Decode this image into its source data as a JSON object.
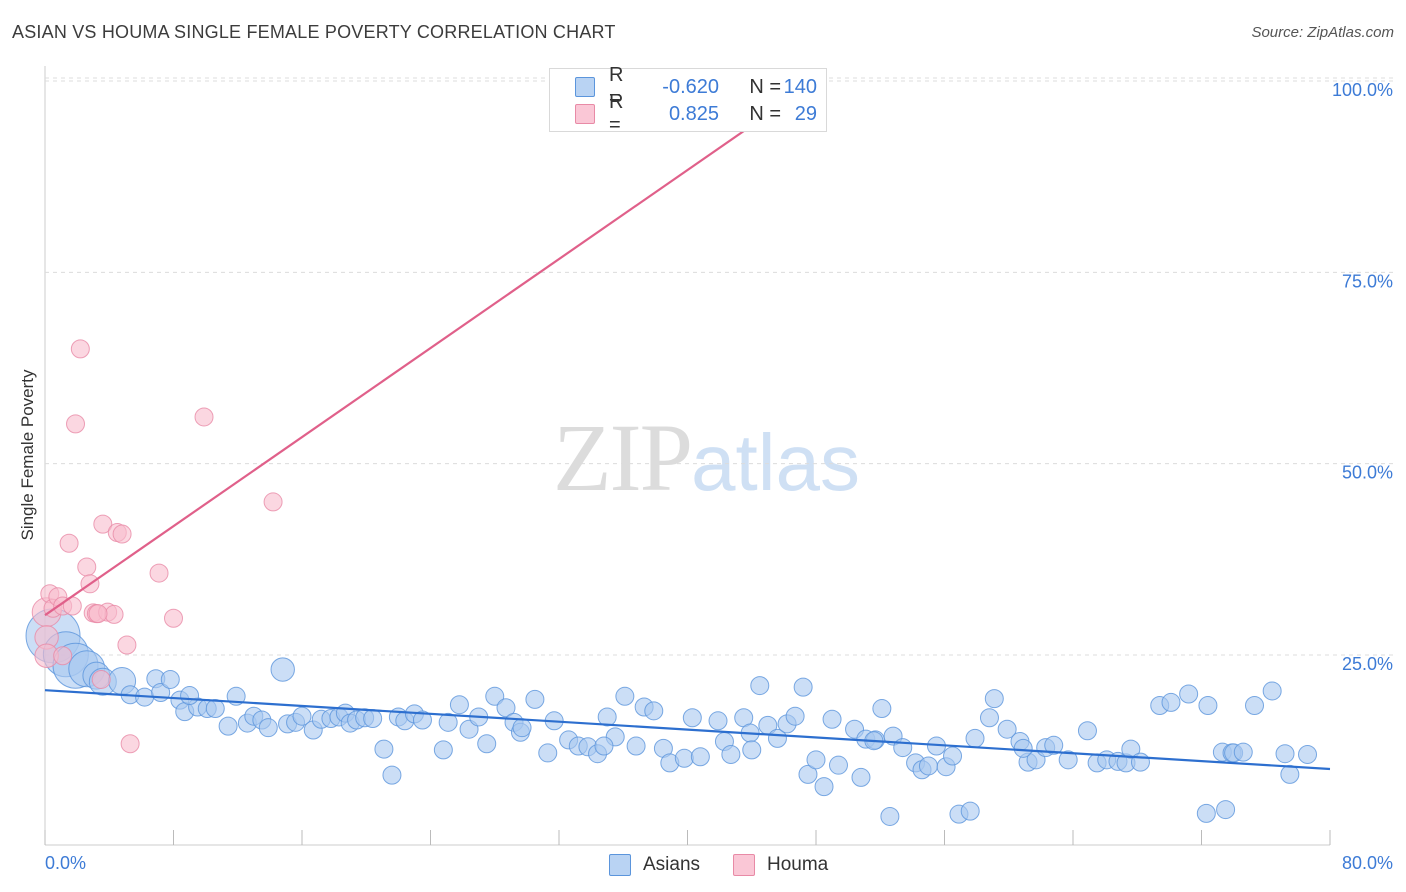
{
  "title": "ASIAN VS HOUMA SINGLE FEMALE POVERTY CORRELATION CHART",
  "source": "Source: ZipAtlas.com",
  "watermark": {
    "zip": "ZIP",
    "atlas": "atlas"
  },
  "colors": {
    "asian_fill": "#a8c8f0",
    "asian_stroke": "#5b95dc",
    "asian_line": "#2d6fcf",
    "houma_fill": "#f8bccd",
    "houma_stroke": "#e88aa6",
    "houma_line": "#e0608a",
    "axis_text": "#3d7bd6",
    "grid": "#dcdcdc"
  },
  "legend": {
    "rows": [
      {
        "r_label": "R =",
        "r_value": "-0.620",
        "n_label": "N =",
        "n_value": "140"
      },
      {
        "r_label": "R =",
        "r_value": "0.825",
        "n_label": "N =",
        "n_value": "29"
      }
    ]
  },
  "bottom_legend": {
    "asians": "Asians",
    "houma": "Houma"
  },
  "chart_data": {
    "type": "scatter",
    "title": "ASIAN VS HOUMA SINGLE FEMALE POVERTY CORRELATION CHART",
    "xlabel": "",
    "ylabel": "Single Female Poverty",
    "xlim": [
      0,
      80
    ],
    "ylim": [
      0,
      105
    ],
    "x_tick_labels": [
      "0.0%",
      "80.0%"
    ],
    "y_ticks": [
      25,
      50,
      75,
      100
    ],
    "y_tick_labels": [
      "25.0%",
      "50.0%",
      "75.0%",
      "100.0%"
    ],
    "grid": "horizontal dashed",
    "series": [
      {
        "name": "Asians",
        "trend": {
          "x": [
            0,
            80
          ],
          "y": [
            20.4,
            10.1
          ]
        },
        "points": [
          [
            0.5,
            27.5,
            3
          ],
          [
            1.3,
            25.1,
            2.5
          ],
          [
            1.9,
            23.6,
            2.5
          ],
          [
            2.6,
            23.2,
            2
          ],
          [
            3.2,
            22.3,
            1.5
          ],
          [
            3.6,
            21.5,
            1.5
          ],
          [
            4.8,
            21.6,
            1.5
          ],
          [
            5.3,
            19.8,
            1
          ],
          [
            6.2,
            19.5,
            1
          ],
          [
            6.9,
            21.9,
            1
          ],
          [
            7.2,
            20.1,
            1
          ],
          [
            7.8,
            21.8,
            1
          ],
          [
            8.4,
            19.1,
            1
          ],
          [
            8.7,
            17.6,
            1
          ],
          [
            9.5,
            18.2,
            1
          ],
          [
            10.1,
            18.0,
            1
          ],
          [
            10.6,
            18.0,
            1
          ],
          [
            11.4,
            15.7,
            1
          ],
          [
            11.9,
            19.6,
            1
          ],
          [
            12.6,
            16.1,
            1
          ],
          [
            13.0,
            17.0,
            1
          ],
          [
            13.5,
            16.5,
            1
          ],
          [
            13.9,
            15.5,
            1
          ],
          [
            14.8,
            23.1,
            1.3
          ],
          [
            15.1,
            16.0,
            1
          ],
          [
            15.6,
            16.2,
            1
          ],
          [
            16.0,
            17.0,
            1
          ],
          [
            16.7,
            15.2,
            1
          ],
          [
            17.2,
            16.6,
            1
          ],
          [
            17.8,
            16.7,
            1
          ],
          [
            18.3,
            16.9,
            1
          ],
          [
            18.7,
            17.4,
            1
          ],
          [
            19.0,
            16.1,
            1
          ],
          [
            19.4,
            16.5,
            1
          ],
          [
            19.9,
            16.8,
            1
          ],
          [
            20.4,
            16.7,
            1
          ],
          [
            21.1,
            12.7,
            1
          ],
          [
            21.6,
            9.3,
            1
          ],
          [
            22.0,
            16.9,
            1
          ],
          [
            22.4,
            16.4,
            1
          ],
          [
            23.0,
            17.3,
            1
          ],
          [
            23.5,
            16.5,
            1
          ],
          [
            24.8,
            12.6,
            1
          ],
          [
            25.1,
            16.2,
            1
          ],
          [
            25.8,
            18.5,
            1
          ],
          [
            26.4,
            15.3,
            1
          ],
          [
            27.0,
            16.9,
            1
          ],
          [
            27.5,
            13.4,
            1
          ],
          [
            28.0,
            19.6,
            1
          ],
          [
            28.7,
            18.1,
            1
          ],
          [
            29.2,
            16.2,
            1
          ],
          [
            29.6,
            14.9,
            1
          ],
          [
            30.5,
            19.2,
            1
          ],
          [
            31.3,
            12.2,
            1
          ],
          [
            31.7,
            16.4,
            1
          ],
          [
            32.6,
            13.9,
            1
          ],
          [
            33.2,
            13.1,
            1
          ],
          [
            33.8,
            13.0,
            1
          ],
          [
            34.4,
            12.1,
            1
          ],
          [
            35.0,
            16.9,
            1
          ],
          [
            35.5,
            14.3,
            1
          ],
          [
            36.1,
            19.6,
            1
          ],
          [
            36.8,
            13.1,
            1
          ],
          [
            37.3,
            18.2,
            1
          ],
          [
            37.9,
            17.7,
            1
          ],
          [
            38.5,
            12.8,
            1
          ],
          [
            38.9,
            10.9,
            1
          ],
          [
            39.8,
            11.5,
            1
          ],
          [
            40.3,
            16.8,
            1
          ],
          [
            40.8,
            11.7,
            1
          ],
          [
            41.9,
            16.4,
            1
          ],
          [
            42.3,
            13.7,
            1
          ],
          [
            42.7,
            12.0,
            1
          ],
          [
            43.5,
            16.8,
            1
          ],
          [
            43.9,
            14.8,
            1
          ],
          [
            44.5,
            21.0,
            1
          ],
          [
            45.0,
            15.8,
            1
          ],
          [
            45.6,
            14.1,
            1
          ],
          [
            46.2,
            16.0,
            1
          ],
          [
            46.7,
            17.0,
            1
          ],
          [
            47.2,
            20.8,
            1
          ],
          [
            47.5,
            9.4,
            1
          ],
          [
            48.0,
            11.3,
            1
          ],
          [
            48.5,
            7.8,
            1
          ],
          [
            49.0,
            16.6,
            1
          ],
          [
            49.4,
            10.6,
            1
          ],
          [
            50.4,
            15.3,
            1
          ],
          [
            50.8,
            9.0,
            1
          ],
          [
            51.1,
            14.0,
            1
          ],
          [
            51.7,
            13.9,
            1
          ],
          [
            52.1,
            18.0,
            1
          ],
          [
            52.6,
            3.9,
            1
          ],
          [
            52.8,
            14.4,
            1
          ],
          [
            53.4,
            12.9,
            1
          ],
          [
            54.2,
            10.9,
            1
          ],
          [
            54.6,
            10.0,
            1
          ],
          [
            55.0,
            10.5,
            1
          ],
          [
            55.5,
            13.1,
            1
          ],
          [
            56.1,
            10.4,
            1
          ],
          [
            56.5,
            11.8,
            1
          ],
          [
            56.9,
            4.2,
            1
          ],
          [
            57.6,
            4.6,
            1
          ],
          [
            57.9,
            14.1,
            1
          ],
          [
            58.8,
            16.8,
            1
          ],
          [
            59.1,
            19.3,
            1
          ],
          [
            59.9,
            15.3,
            1
          ],
          [
            60.7,
            13.7,
            1
          ],
          [
            61.2,
            11.0,
            1
          ],
          [
            61.7,
            11.3,
            1
          ],
          [
            62.3,
            12.9,
            1
          ],
          [
            62.8,
            13.2,
            1
          ],
          [
            63.7,
            11.3,
            1
          ],
          [
            64.9,
            15.1,
            1
          ],
          [
            65.5,
            10.9,
            1
          ],
          [
            66.1,
            11.3,
            1
          ],
          [
            66.8,
            11.1,
            1
          ],
          [
            67.3,
            10.9,
            1
          ],
          [
            67.6,
            12.7,
            1
          ],
          [
            69.4,
            18.4,
            1
          ],
          [
            70.1,
            18.8,
            1
          ],
          [
            71.2,
            19.9,
            1
          ],
          [
            72.4,
            18.4,
            1
          ],
          [
            73.3,
            12.3,
            1
          ],
          [
            73.9,
            12.2,
            1
          ],
          [
            74.0,
            12.2,
            1
          ],
          [
            72.3,
            4.3,
            1
          ],
          [
            73.5,
            4.8,
            1
          ],
          [
            75.3,
            18.4,
            1
          ],
          [
            76.4,
            20.3,
            1
          ],
          [
            77.5,
            9.4,
            1
          ],
          [
            77.2,
            12.1,
            1
          ],
          [
            78.6,
            12.0,
            1
          ],
          [
            9.0,
            19.7,
            1
          ],
          [
            29.7,
            15.5,
            1
          ],
          [
            34.8,
            13.1,
            1
          ],
          [
            44.0,
            12.6,
            1
          ],
          [
            51.6,
            13.8,
            1
          ],
          [
            60.9,
            12.8,
            1
          ],
          [
            68.2,
            11.0,
            1
          ],
          [
            74.6,
            12.3,
            1
          ]
        ]
      },
      {
        "name": "Houma",
        "trend": {
          "x": [
            0,
            48
          ],
          "y": [
            30.2,
            100
          ]
        },
        "points": [
          [
            0.1,
            30.6,
            1.6
          ],
          [
            0.1,
            27.3,
            1.3
          ],
          [
            0.1,
            24.9,
            1.3
          ],
          [
            0.3,
            33.0,
            1
          ],
          [
            0.5,
            31.1,
            1
          ],
          [
            0.8,
            32.6,
            1
          ],
          [
            1.1,
            31.4,
            1
          ],
          [
            1.1,
            24.9,
            1
          ],
          [
            1.5,
            39.6,
            1
          ],
          [
            1.7,
            31.4,
            1
          ],
          [
            1.9,
            55.2,
            1
          ],
          [
            2.2,
            65.0,
            1
          ],
          [
            2.6,
            36.5,
            1
          ],
          [
            2.8,
            34.3,
            1
          ],
          [
            3.0,
            30.5,
            1
          ],
          [
            3.2,
            30.4,
            1
          ],
          [
            3.5,
            21.8,
            1
          ],
          [
            3.6,
            42.1,
            1
          ],
          [
            3.9,
            30.6,
            1
          ],
          [
            4.3,
            30.3,
            1
          ],
          [
            4.5,
            41.0,
            1
          ],
          [
            4.8,
            40.8,
            1
          ],
          [
            5.1,
            26.3,
            1
          ],
          [
            5.3,
            13.4,
            1
          ],
          [
            7.1,
            35.7,
            1
          ],
          [
            8.0,
            29.8,
            1
          ],
          [
            9.9,
            56.1,
            1
          ],
          [
            14.2,
            45.0,
            1
          ],
          [
            3.3,
            30.4,
            1
          ]
        ]
      }
    ]
  }
}
